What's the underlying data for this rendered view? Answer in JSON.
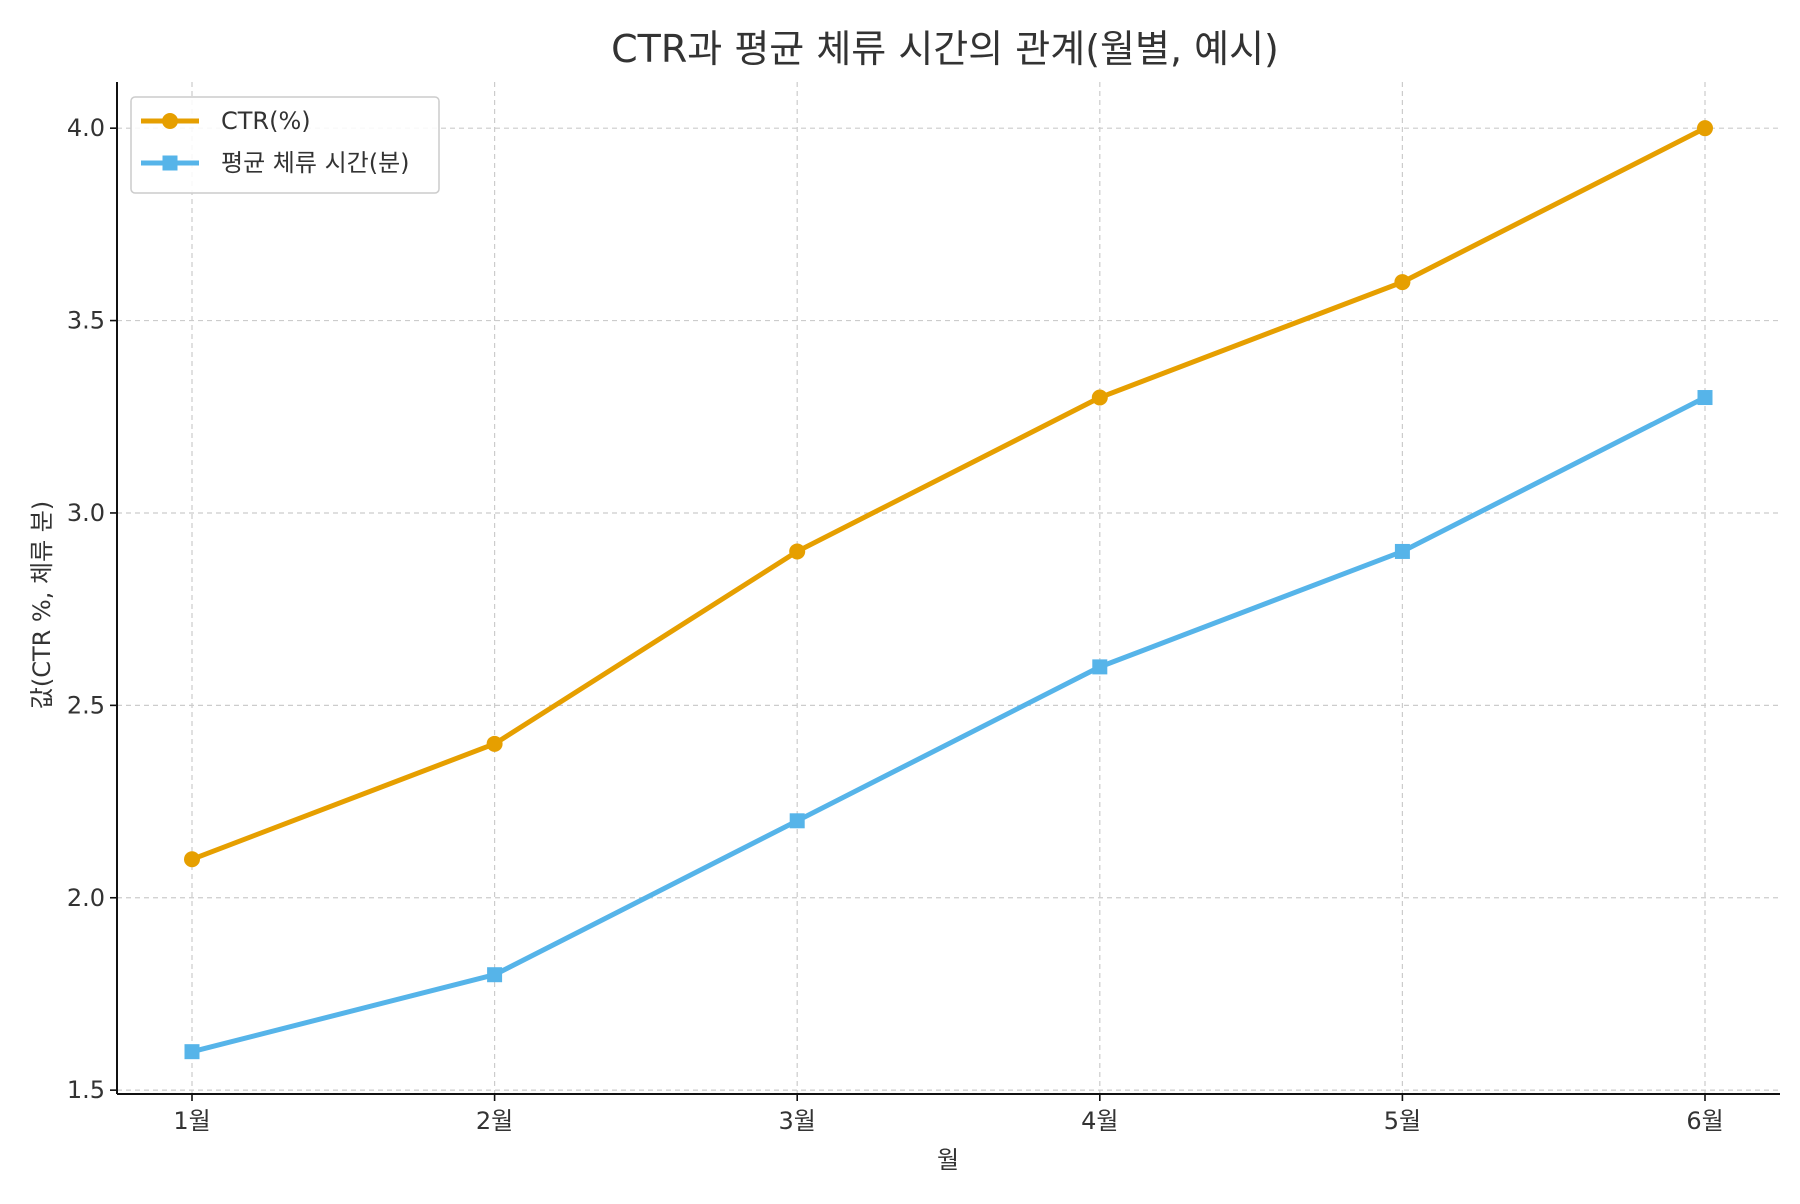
{
  "chart_data": {
    "type": "line",
    "title": "CTR과 평균 체류 시간의 관계(월별, 예시)",
    "xlabel": "월",
    "ylabel": "값(CTR %, 체류 분)",
    "categories": [
      "1월",
      "2월",
      "3월",
      "4월",
      "5월",
      "6월"
    ],
    "series": [
      {
        "name": "CTR(%)",
        "values": [
          2.1,
          2.4,
          2.9,
          3.3,
          3.6,
          4.0
        ],
        "color": "#E69F00",
        "marker": "circle"
      },
      {
        "name": "평균 체류 시간(분)",
        "values": [
          1.6,
          1.8,
          2.2,
          2.6,
          2.9,
          3.3
        ],
        "color": "#56B4E9",
        "marker": "square"
      }
    ],
    "ylim": [
      1.49,
      4.12
    ],
    "yticks": [
      "1.5",
      "2.0",
      "2.5",
      "3.0",
      "3.5",
      "4.0"
    ],
    "grid": true,
    "legend": "top-left"
  }
}
